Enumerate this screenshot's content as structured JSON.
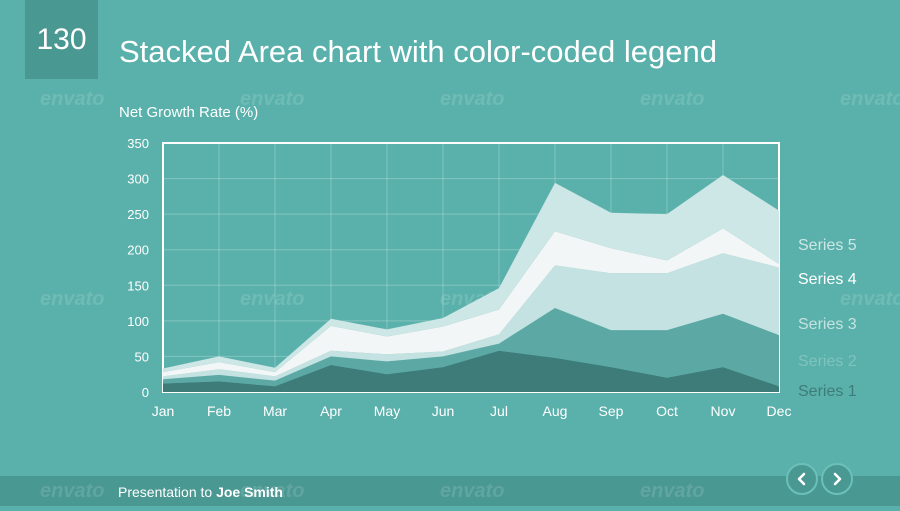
{
  "slide": {
    "number": "130",
    "title": "Stacked Area chart with color-coded legend"
  },
  "footer": {
    "prefix": "Presentation to",
    "name": "Joe Smith"
  },
  "nav": {
    "prev_icon": "chevron-left-icon",
    "next_icon": "chevron-right-icon"
  },
  "watermark": "envato",
  "colors": {
    "background": "#5ab1ab",
    "panel": "#4a9892",
    "series": [
      "#3e7c79",
      "#5ba8a4",
      "#c4e2e1",
      "#f3f6f6",
      "#cde6e6"
    ]
  },
  "chart_data": {
    "type": "area",
    "stacked": true,
    "title": "Net Growth Rate (%)",
    "categories": [
      "Jan",
      "Feb",
      "Mar",
      "Apr",
      "May",
      "Jun",
      "Jul",
      "Aug",
      "Sep",
      "Oct",
      "Nov",
      "Dec"
    ],
    "ylim": [
      0,
      350
    ],
    "yticks": [
      "0",
      "50",
      "100",
      "150",
      "200",
      "250",
      "300",
      "350"
    ],
    "grid": true,
    "legend_position": "right",
    "series": [
      {
        "name": "Series 1",
        "values": [
          12,
          15,
          8,
          38,
          25,
          35,
          58,
          48,
          35,
          20,
          35,
          8
        ]
      },
      {
        "name": "Series 2",
        "values": [
          6,
          9,
          8,
          12,
          18,
          15,
          10,
          70,
          52,
          67,
          75,
          72
        ]
      },
      {
        "name": "Series 3",
        "values": [
          4,
          8,
          6,
          8,
          10,
          7,
          13,
          60,
          80,
          80,
          85,
          95
        ]
      },
      {
        "name": "Series 4",
        "values": [
          6,
          10,
          6,
          35,
          25,
          35,
          35,
          48,
          35,
          18,
          35,
          5
        ]
      },
      {
        "name": "Series 5",
        "values": [
          5,
          8,
          6,
          10,
          10,
          12,
          30,
          68,
          50,
          65,
          75,
          75
        ]
      }
    ]
  }
}
